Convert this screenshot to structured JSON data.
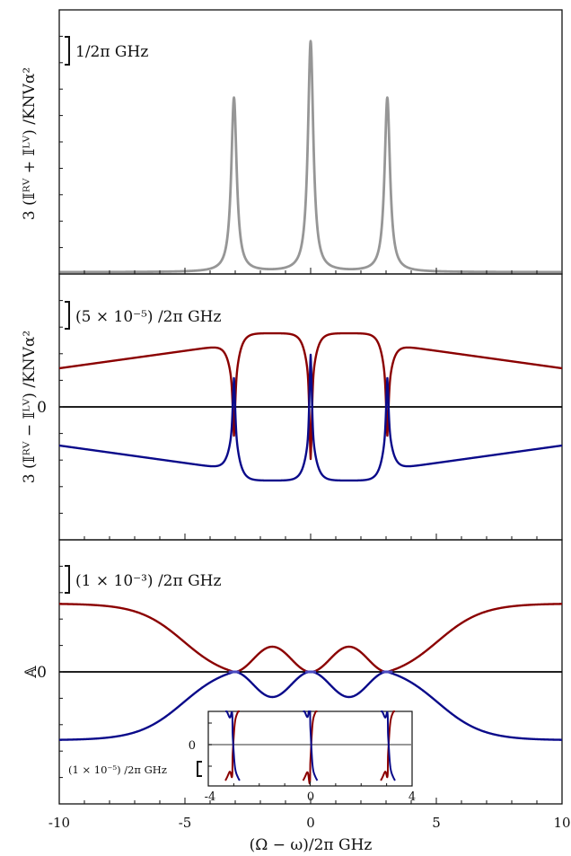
{
  "figure": {
    "xlabel": "(Ω − ω)/2π GHz",
    "xticks": [
      "-10",
      "-5",
      "0",
      "5",
      "10"
    ]
  },
  "chart_data": [
    {
      "type": "line",
      "panel": "top",
      "ylabel": "3 (𝕀ᴿⱽ + 𝕀ᴸⱽ) /KNVα²",
      "scale_bar_label": "1/2π GHz",
      "xlim": [
        -10,
        10
      ],
      "series": [
        {
          "color": "#969696",
          "shape": "lorentzian_peaks",
          "centers": [
            -3.05,
            0,
            3.05
          ],
          "peak_heights": [
            0.68,
            0.9,
            0.68
          ],
          "width": 0.13
        }
      ]
    },
    {
      "type": "line",
      "panel": "middle",
      "ylabel": "3 (𝕀ᴿⱽ − 𝕀ᴸⱽ) /KNVα²",
      "scale_bar_label": "(5 × 10⁻⁵) /2π GHz",
      "y_zero_label": "0",
      "xlim": [
        -10,
        10
      ],
      "series": [
        {
          "color": "#8b0000",
          "role": "upper"
        },
        {
          "color": "#0a0a8a",
          "role": "lower"
        }
      ]
    },
    {
      "type": "line",
      "panel": "bottom",
      "ylabel": "𝔸",
      "scale_bar_label": "(1 × 10⁻³) /2π GHz",
      "y_zero_label": "0",
      "xlim": [
        -10,
        10
      ],
      "series": [
        {
          "color": "#8b0000",
          "role": "upper"
        },
        {
          "color": "#0a0a8a",
          "role": "lower"
        }
      ],
      "inset": {
        "xlim": [
          -4,
          4
        ],
        "xticks": [
          "-4",
          "0",
          "4"
        ],
        "y_zero_label": "0",
        "scale_bar_label": "(1 × 10⁻⁵) /2π GHz"
      }
    }
  ],
  "colors": {
    "red": "#8b0000",
    "blue": "#0a0a8a",
    "gray": "#969696",
    "axis": "#111111"
  }
}
